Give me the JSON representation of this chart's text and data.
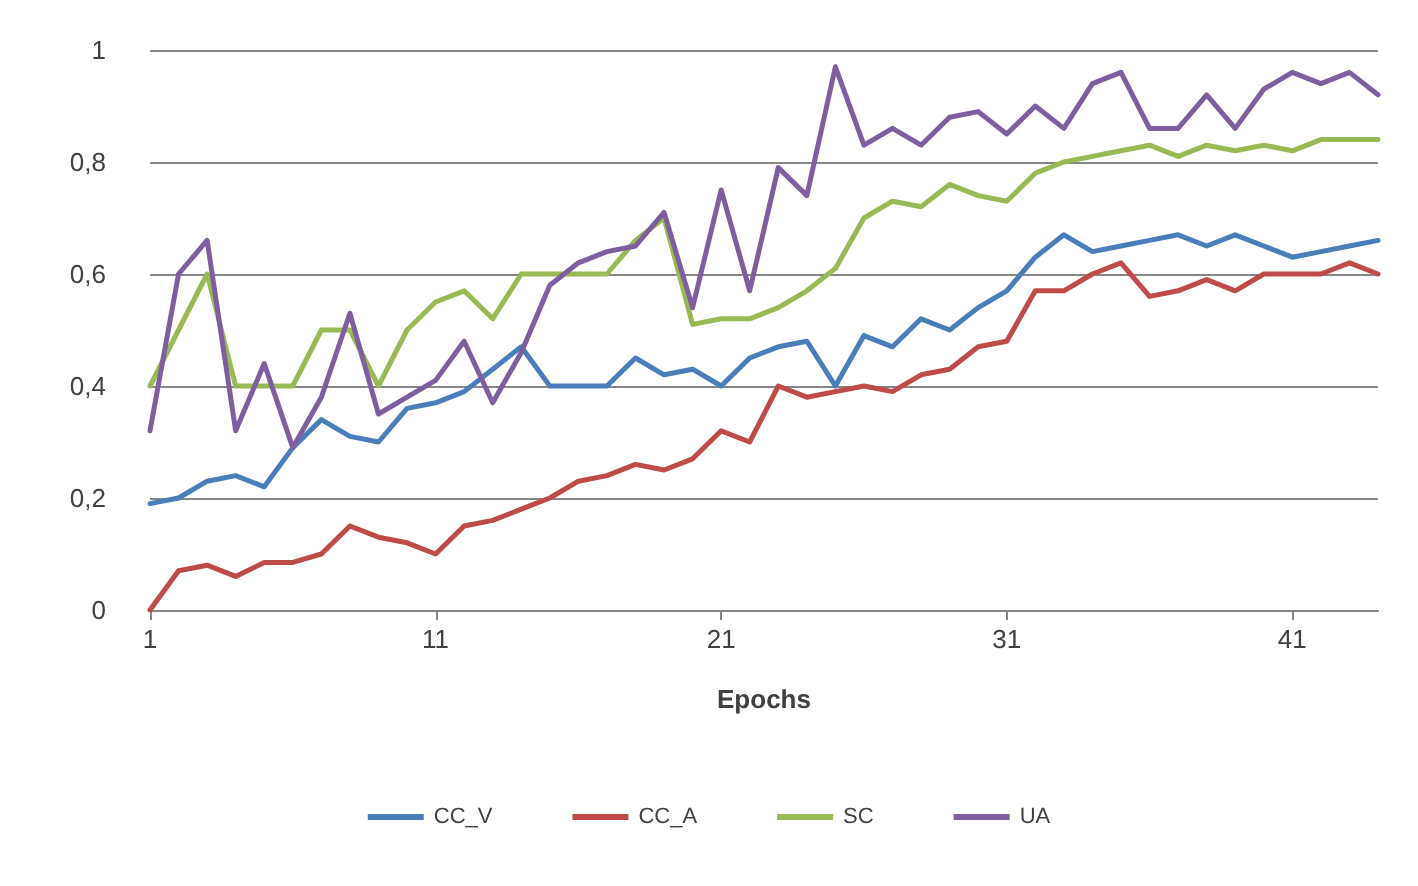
{
  "chart_data": {
    "type": "line",
    "xlabel": "Epochs",
    "categories": [
      "1",
      null,
      null,
      null,
      null,
      null,
      null,
      null,
      null,
      null,
      "11",
      null,
      null,
      null,
      null,
      null,
      null,
      null,
      null,
      null,
      "21",
      null,
      null,
      null,
      null,
      null,
      null,
      null,
      null,
      null,
      "31",
      null,
      null,
      null,
      null,
      null,
      null,
      null,
      null,
      null,
      "41",
      null,
      null,
      null
    ],
    "series": [
      {
        "name": "CC_V",
        "color": "#4a7ebb",
        "values": [
          0.19,
          0.2,
          0.23,
          0.24,
          0.22,
          0.29,
          0.34,
          0.31,
          0.3,
          0.36,
          0.37,
          0.39,
          0.43,
          0.47,
          0.4,
          0.4,
          0.4,
          0.45,
          0.42,
          0.43,
          0.4,
          0.45,
          0.47,
          0.48,
          0.4,
          0.49,
          0.47,
          0.52,
          0.5,
          0.54,
          0.57,
          0.63,
          0.67,
          0.64,
          0.65,
          0.66,
          0.67,
          0.65,
          0.67,
          0.65,
          0.63,
          0.64,
          0.65,
          0.66
        ]
      },
      {
        "name": "CC_A",
        "color": "#be4b48",
        "values": [
          0,
          0.07,
          0.08,
          0.06,
          0.085,
          0.085,
          0.1,
          0.15,
          0.13,
          0.12,
          0.1,
          0.15,
          0.16,
          0.18,
          0.2,
          0.23,
          0.24,
          0.26,
          0.25,
          0.27,
          0.32,
          0.3,
          0.4,
          0.38,
          0.39,
          0.4,
          0.39,
          0.42,
          0.43,
          0.47,
          0.48,
          0.57,
          0.57,
          0.6,
          0.62,
          0.56,
          0.57,
          0.59,
          0.57,
          0.6,
          0.6,
          0.6,
          0.62,
          0.6
        ]
      },
      {
        "name": "SC",
        "color": "#98b954",
        "values": [
          0.4,
          0.5,
          0.6,
          0.4,
          0.4,
          0.4,
          0.5,
          0.5,
          0.4,
          0.5,
          0.55,
          0.57,
          0.52,
          0.6,
          0.6,
          0.6,
          0.6,
          0.66,
          0.7,
          0.51,
          0.52,
          0.52,
          0.54,
          0.57,
          0.61,
          0.7,
          0.73,
          0.72,
          0.76,
          0.74,
          0.73,
          0.78,
          0.8,
          0.81,
          0.82,
          0.83,
          0.81,
          0.83,
          0.82,
          0.83,
          0.82,
          0.84,
          0.84,
          0.84
        ]
      },
      {
        "name": "UA",
        "color": "#7d5fa0",
        "values": [
          0.32,
          0.6,
          0.66,
          0.32,
          0.44,
          0.29,
          0.38,
          0.53,
          0.35,
          0.38,
          0.41,
          0.48,
          0.37,
          0.46,
          0.58,
          0.62,
          0.64,
          0.65,
          0.71,
          0.54,
          0.75,
          0.57,
          0.79,
          0.74,
          0.97,
          0.83,
          0.86,
          0.83,
          0.88,
          0.89,
          0.85,
          0.9,
          0.86,
          0.94,
          0.96,
          0.86,
          0.86,
          0.92,
          0.86,
          0.93,
          0.96,
          0.94,
          0.96,
          0.92
        ]
      }
    ],
    "ylim": [
      0,
      1
    ],
    "yticks": [
      0,
      {
        "value": 0.2,
        "label": "0,2"
      },
      {
        "value": 0.4,
        "label": "0,4"
      },
      {
        "value": 0.6,
        "label": "0,6"
      },
      {
        "value": 0.8,
        "label": "0,8"
      },
      1
    ],
    "grid": "y",
    "legend": "bottom",
    "marker": "none",
    "line_style": "solid"
  }
}
